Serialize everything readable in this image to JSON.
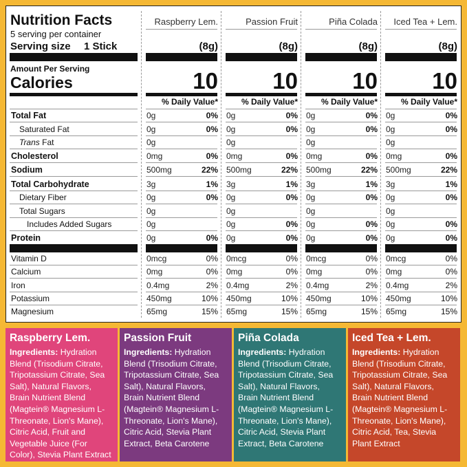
{
  "panel": {
    "title": "Nutrition Facts",
    "servings": "5 serving per container",
    "serving_size_label": "Serving size",
    "serving_size": "1 Stick",
    "amount_per_serving": "Amount Per Serving",
    "calories_label": "Calories",
    "daily_value_label": "% Daily Value*"
  },
  "nutrients": [
    {
      "name": "Total Fat",
      "bold": true,
      "indent": 0
    },
    {
      "name": "Saturated Fat",
      "bold": false,
      "indent": 1
    },
    {
      "italic_prefix": "Trans",
      "name": "Fat",
      "bold": false,
      "indent": 1
    },
    {
      "name": "Cholesterol",
      "bold": true,
      "indent": 0
    },
    {
      "name": "Sodium",
      "bold": true,
      "indent": 0
    },
    {
      "name": "Total Carbohydrate",
      "bold": true,
      "indent": 0
    },
    {
      "name": "Dietary Fiber",
      "bold": false,
      "indent": 1
    },
    {
      "name": "Total Sugars",
      "bold": false,
      "indent": 1
    },
    {
      "name": "Includes Added Sugars",
      "bold": false,
      "indent": 2
    },
    {
      "name": "Protein",
      "bold": true,
      "indent": 0
    },
    {
      "name": "Vitamin D",
      "bold": false,
      "indent": 0
    },
    {
      "name": "Calcium",
      "bold": false,
      "indent": 0
    },
    {
      "name": "Iron",
      "bold": false,
      "indent": 0
    },
    {
      "name": "Potassium",
      "bold": false,
      "indent": 0
    },
    {
      "name": "Magnesium",
      "bold": false,
      "indent": 0
    }
  ],
  "products": [
    {
      "name": "Raspberry Lem.",
      "serving": "(8g)",
      "calories": "10",
      "color": "#e0457b",
      "amounts": [
        "0g",
        "0g",
        "0g",
        "0mg",
        "500mg",
        "3g",
        "0g",
        "0g",
        "0g",
        "0g",
        "0mcg",
        "0mg",
        "0.4mg",
        "450mg",
        "65mg"
      ],
      "daily_values": [
        "0%",
        "0%",
        null,
        "0%",
        "22%",
        "1%",
        "0%",
        null,
        null,
        "0%",
        "0%",
        "0%",
        "2%",
        "10%",
        "15%"
      ],
      "ingredients_heading": "Ingredients:",
      "ingredients": "Hydration Blend (Trisodium Citrate, Tripotassium Citrate, Sea Salt), Natural Flavors, Brain Nutrient Blend (Magtein® Magnesium L-Threonate, Lion's Mane), Citric Acid, Fruit and Vegetable Juice (For Color), Stevia Plant Extract"
    },
    {
      "name": "Passion Fruit",
      "serving": "(8g)",
      "calories": "10",
      "color": "#7c3a7f",
      "amounts": [
        "0g",
        "0g",
        "0g",
        "0mg",
        "500mg",
        "3g",
        "0g",
        "0g",
        "0g",
        "0g",
        "0mcg",
        "0mg",
        "0.4mg",
        "450mg",
        "65mg"
      ],
      "daily_values": [
        "0%",
        "0%",
        null,
        "0%",
        "22%",
        "1%",
        "0%",
        null,
        "0%",
        "0%",
        "0%",
        "0%",
        "2%",
        "10%",
        "15%"
      ],
      "ingredients_heading": "Ingredients:",
      "ingredients": "Hydration Blend (Trisodium Citrate, Tripotassium Citrate, Sea Salt), Natural Flavors, Brain Nutrient Blend (Magtein® Magnesium L-Threonate, Lion's Mane), Citric Acid, Stevia Plant Extract, Beta Carotene"
    },
    {
      "name": "Piña Colada",
      "serving": "(8g)",
      "calories": "10",
      "color": "#2f7775",
      "amounts": [
        "0g",
        "0g",
        "0g",
        "0mg",
        "500mg",
        "3g",
        "0g",
        "0g",
        "0g",
        "0g",
        "0mcg",
        "0mg",
        "0.4mg",
        "450mg",
        "65mg"
      ],
      "daily_values": [
        "0%",
        "0%",
        null,
        "0%",
        "22%",
        "1%",
        "0%",
        null,
        "0%",
        "0%",
        "0%",
        "0%",
        "2%",
        "10%",
        "15%"
      ],
      "ingredients_heading": "Ingredients:",
      "ingredients": "Hydration Blend (Trisodium Citrate, Tripotassium Citrate, Sea Salt), Natural Flavors, Brain Nutrient Blend (Magtein® Magnesium L-Threonate, Lion's Mane), Citric Acid, Stevia Plant Extract, Beta Carotene"
    },
    {
      "name": "Iced Tea + Lem.",
      "serving": "(8g)",
      "calories": "10",
      "color": "#c5472a",
      "amounts": [
        "0g",
        "0g",
        "0g",
        "0mg",
        "500mg",
        "3g",
        "0g",
        "0g",
        "0g",
        "0g",
        "0mcg",
        "0mg",
        "0.4mg",
        "450mg",
        "65mg"
      ],
      "daily_values": [
        "0%",
        "0%",
        null,
        "0%",
        "22%",
        "1%",
        "0%",
        null,
        "0%",
        "0%",
        "0%",
        "0%",
        "2%",
        "10%",
        "15%"
      ],
      "ingredients_heading": "Ingredients:",
      "ingredients": "Hydration Blend (Trisodium Citrate, Tripotassium Citrate, Sea Salt), Natural Flavors, Brain Nutrient Blend (Magtein® Magnesium L-Threonate, Lion's Mane), Citric Acid, Tea, Stevia Plant Extract"
    }
  ]
}
